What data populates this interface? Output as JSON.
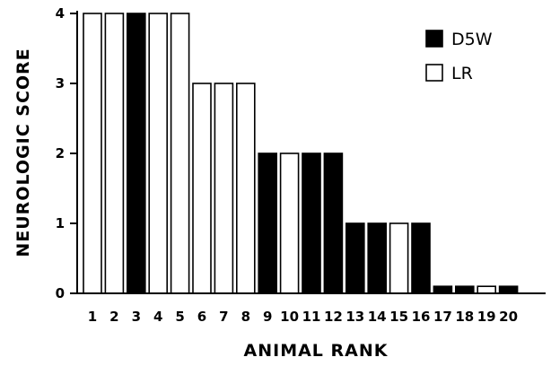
{
  "chart_data": {
    "type": "bar",
    "xlabel": "ANIMAL RANK",
    "ylabel": "NEUROLOGIC SCORE",
    "ylim": [
      0,
      4
    ],
    "yticks": [
      "0",
      "1",
      "2",
      "3",
      "4"
    ],
    "categories": [
      "1",
      "2",
      "3",
      "4",
      "5",
      "6",
      "7",
      "8",
      "9",
      "10",
      "11",
      "12",
      "13",
      "14",
      "15",
      "16",
      "17",
      "18",
      "19",
      "20"
    ],
    "values": [
      4,
      4,
      4,
      4,
      4,
      3,
      3,
      3,
      2,
      2,
      2,
      2,
      1,
      1,
      1,
      1,
      0.1,
      0.1,
      0.1,
      0.1
    ],
    "groups": [
      "LR",
      "LR",
      "D5W",
      "LR",
      "LR",
      "LR",
      "LR",
      "LR",
      "D5W",
      "LR",
      "D5W",
      "D5W",
      "D5W",
      "D5W",
      "LR",
      "D5W",
      "D5W",
      "D5W",
      "LR",
      "D5W"
    ],
    "legend": [
      {
        "name": "D5W",
        "color": "#000000"
      },
      {
        "name": "LR",
        "color": "#ffffff"
      }
    ],
    "legend_position": "top-right",
    "grid": false
  }
}
